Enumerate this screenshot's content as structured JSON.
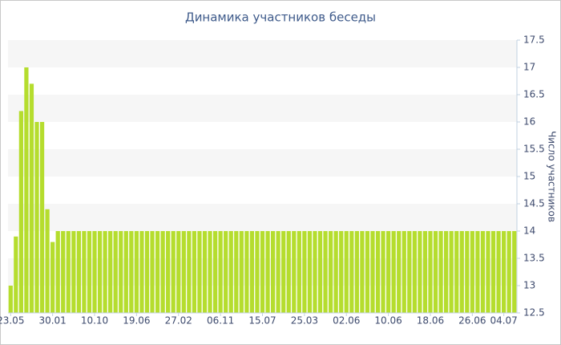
{
  "chart_data": {
    "type": "bar",
    "title": "Динамика участников беседы",
    "y_axis_label": "Число участников",
    "categories": [
      "23.05",
      null,
      null,
      null,
      null,
      null,
      null,
      null,
      "30.01",
      null,
      null,
      null,
      null,
      null,
      null,
      null,
      "10.10",
      null,
      null,
      null,
      null,
      null,
      null,
      null,
      "19.06",
      null,
      null,
      null,
      null,
      null,
      null,
      null,
      "27.02",
      null,
      null,
      null,
      null,
      null,
      null,
      null,
      "06.11",
      null,
      null,
      null,
      null,
      null,
      null,
      null,
      "15.07",
      null,
      null,
      null,
      null,
      null,
      null,
      null,
      "25.03",
      null,
      null,
      null,
      null,
      null,
      null,
      null,
      "02.06",
      null,
      null,
      null,
      null,
      null,
      null,
      null,
      "10.06",
      null,
      null,
      null,
      null,
      null,
      null,
      null,
      "18.06",
      null,
      null,
      null,
      null,
      null,
      null,
      null,
      "26.06",
      null,
      null,
      null,
      null,
      null,
      "04.07",
      null,
      null
    ],
    "values": [
      13,
      13.9,
      16.2,
      17,
      16.7,
      16,
      16,
      14.4,
      13.8,
      14,
      14,
      14,
      14,
      14,
      14,
      14,
      14,
      14,
      14,
      14,
      14,
      14,
      14,
      14,
      14,
      14,
      14,
      14,
      14,
      14,
      14,
      14,
      14,
      14,
      14,
      14,
      14,
      14,
      14,
      14,
      14,
      14,
      14,
      14,
      14,
      14,
      14,
      14,
      14,
      14,
      14,
      14,
      14,
      14,
      14,
      14,
      14,
      14,
      14,
      14,
      14,
      14,
      14,
      14,
      14,
      14,
      14,
      14,
      14,
      14,
      14,
      14,
      14,
      14,
      14,
      14,
      14,
      14,
      14,
      14,
      14,
      14,
      14,
      14,
      14,
      14,
      14,
      14,
      14,
      14,
      14,
      14,
      14,
      14,
      14,
      14,
      14
    ],
    "color": "#b5dd2e",
    "ylim": [
      12.5,
      17.5
    ],
    "yticks": [
      12.5,
      13,
      13.5,
      14,
      14.5,
      15,
      15.5,
      16,
      16.5,
      17,
      17.5
    ],
    "grid": true,
    "y_axis_side": "right"
  }
}
